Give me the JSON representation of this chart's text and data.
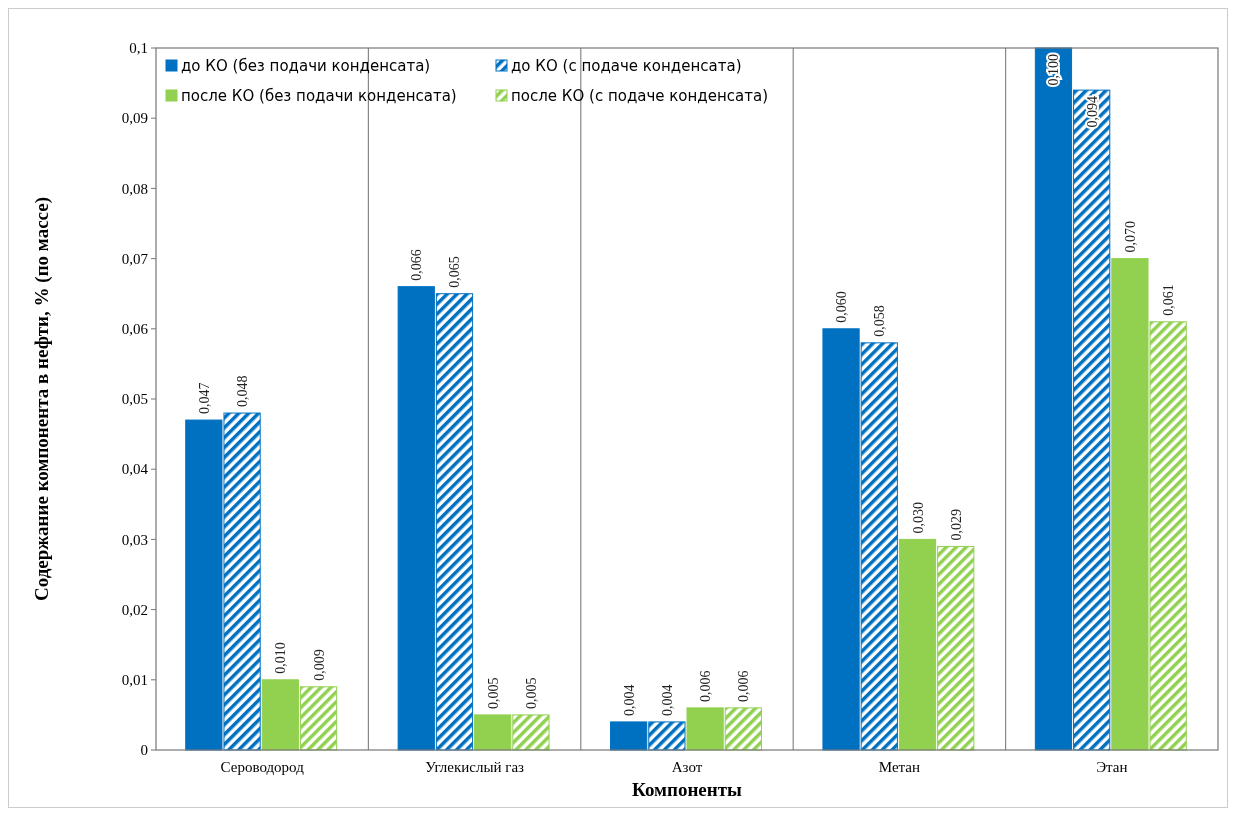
{
  "chart_data": {
    "type": "bar",
    "xlabel": "Компоненты",
    "ylabel": "Содержание компонента в нефти, % (по массе)",
    "categories": [
      "Сероводород",
      "Углекислый газ",
      "Азот",
      "Метан",
      "Этан"
    ],
    "series": [
      {
        "name": "до КО (без подачи конденсата)",
        "color": "#0070c0",
        "values": [
          0.047,
          0.066,
          0.004,
          0.06,
          0.1
        ],
        "value_labels": [
          "0,047",
          "0,066",
          "0,004",
          "0,060",
          "0,100"
        ]
      },
      {
        "name": "до КО (с подаче конденсата)",
        "color": "#0070c0",
        "values": [
          0.048,
          0.065,
          0.004,
          0.058,
          0.094
        ],
        "value_labels": [
          "0,048",
          "0,065",
          "0,004",
          "0,058",
          "0,094"
        ]
      },
      {
        "name": "после КО (без подачи конденсата)",
        "color": "#92d050",
        "values": [
          0.01,
          0.005,
          0.006,
          0.03,
          0.07
        ],
        "value_labels": [
          "0,010",
          "0,005",
          "0,006",
          "0,030",
          "0,070"
        ]
      },
      {
        "name": "после КО (с подаче конденсата)",
        "color": "#92d050",
        "values": [
          0.009,
          0.005,
          0.006,
          0.029,
          0.061
        ],
        "value_labels": [
          "0,009",
          "0,005",
          "0,006",
          "0,029",
          "0,061"
        ]
      }
    ],
    "ylim": [
      0,
      0.1
    ],
    "yticks": [
      {
        "value": 0,
        "label": "0"
      },
      {
        "value": 0.01,
        "label": "0,01"
      },
      {
        "value": 0.02,
        "label": "0,02"
      },
      {
        "value": 0.03,
        "label": "0,03"
      },
      {
        "value": 0.04,
        "label": "0,04"
      },
      {
        "value": 0.05,
        "label": "0,05"
      },
      {
        "value": 0.06,
        "label": "0,06"
      },
      {
        "value": 0.07,
        "label": "0,07"
      },
      {
        "value": 0.08,
        "label": "0,08"
      },
      {
        "value": 0.09,
        "label": "0,09"
      },
      {
        "value": 0.1,
        "label": "0,1"
      }
    ],
    "grid": "x",
    "legend": "top left"
  }
}
